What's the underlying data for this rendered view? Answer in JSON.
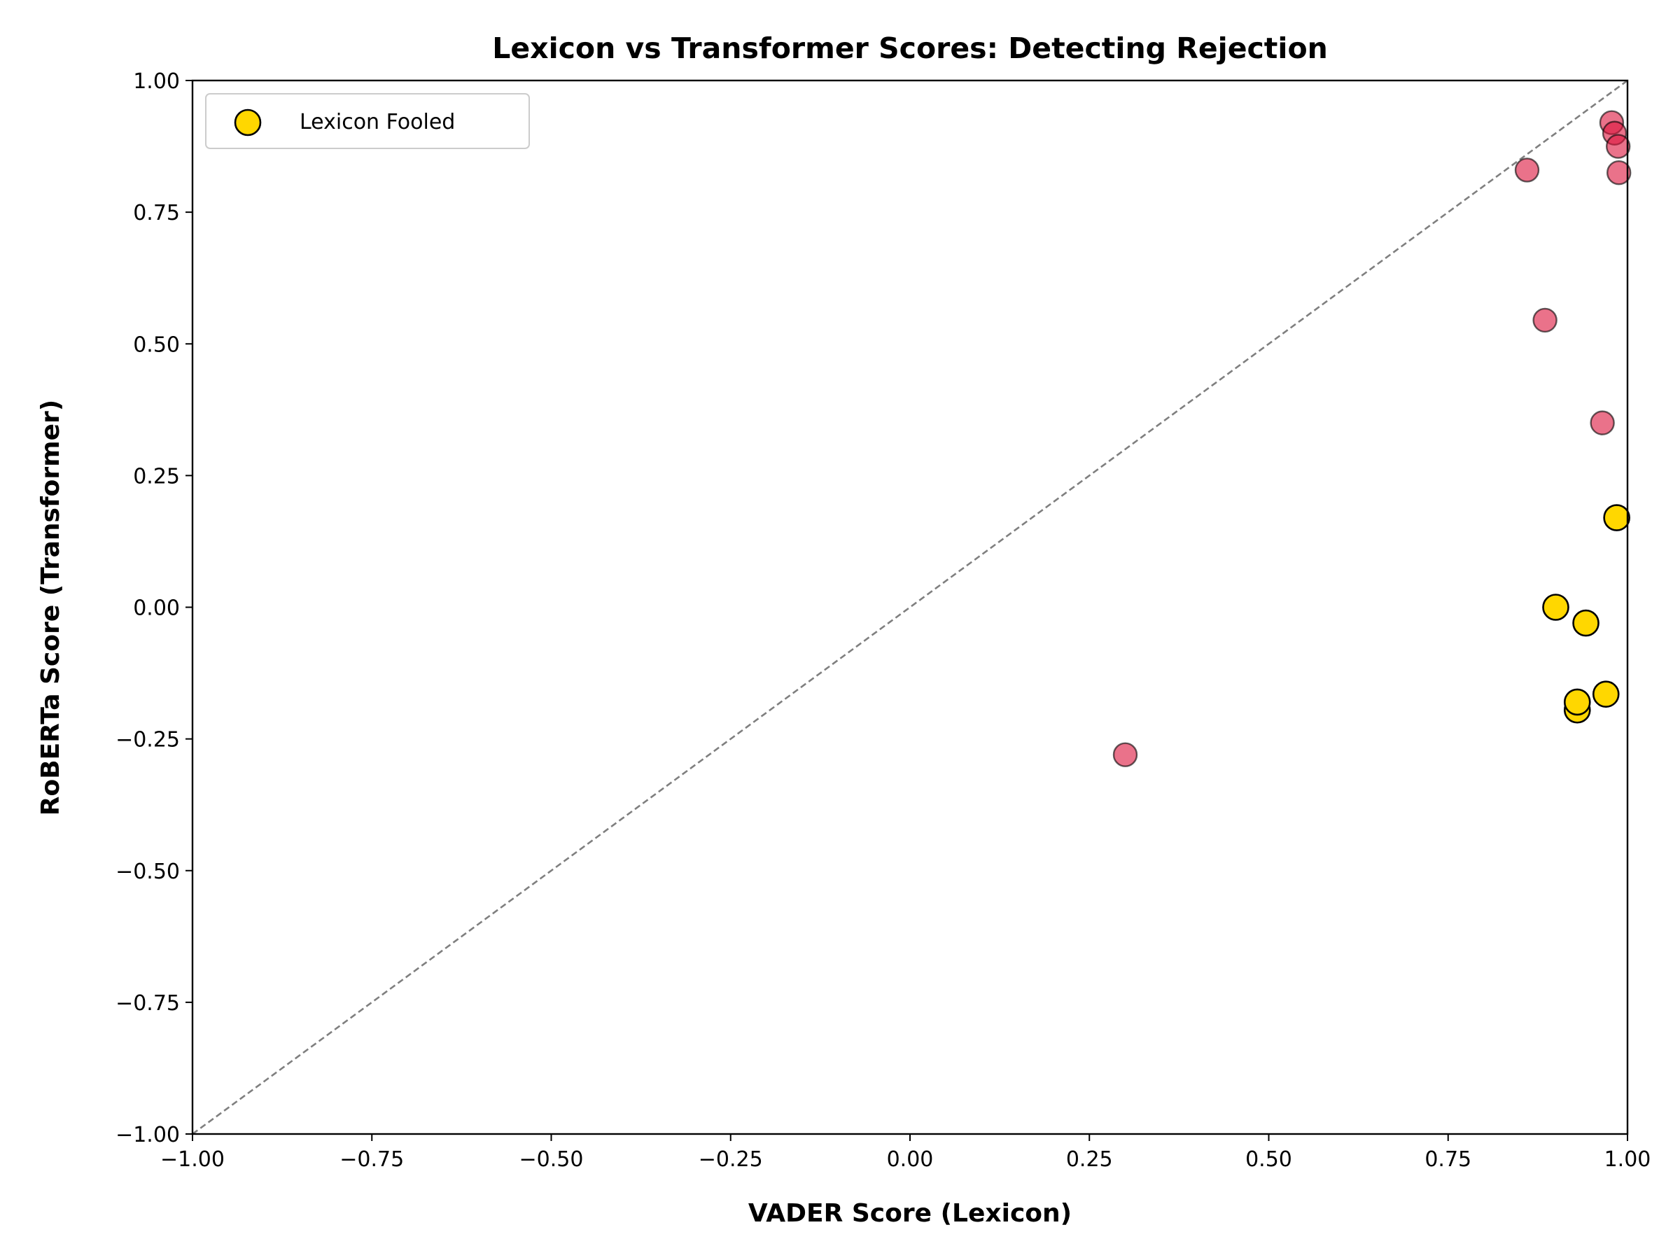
{
  "chart_data": {
    "type": "scatter",
    "title": "Lexicon vs Transformer Scores: Detecting Rejection",
    "xlabel": "VADER Score (Lexicon)",
    "ylabel": "RoBERTa Score (Transformer)",
    "xlim": [
      -1.0,
      1.0
    ],
    "ylim": [
      -1.0,
      1.0
    ],
    "x_ticks": [
      "−1.00",
      "−0.75",
      "−0.50",
      "−0.25",
      "0.00",
      "0.25",
      "0.50",
      "0.75",
      "1.00"
    ],
    "y_ticks": [
      "−1.00",
      "−0.75",
      "−0.50",
      "−0.25",
      "0.00",
      "0.25",
      "0.50",
      "0.75",
      "1.00"
    ],
    "x_tick_values": [
      -1.0,
      -0.75,
      -0.5,
      -0.25,
      0.0,
      0.25,
      0.5,
      0.75,
      1.0
    ],
    "y_tick_values": [
      -1.0,
      -0.75,
      -0.5,
      -0.25,
      0.0,
      0.25,
      0.5,
      0.75,
      1.0
    ],
    "grid": false,
    "reference_line": "y = x (dashed, gray)",
    "legend_position": "top-left",
    "series": [
      {
        "color": "#dc143c",
        "points": [
          {
            "x": 0.86,
            "y": 0.83
          },
          {
            "x": 0.885,
            "y": 0.545
          },
          {
            "x": 0.965,
            "y": 0.35
          },
          {
            "x": 0.978,
            "y": 0.92
          },
          {
            "x": 0.982,
            "y": 0.9
          },
          {
            "x": 0.987,
            "y": 0.875
          },
          {
            "x": 0.988,
            "y": 0.825
          },
          {
            "x": 0.3,
            "y": -0.28
          }
        ]
      },
      {
        "name": "Lexicon Fooled",
        "color": "#ffd700",
        "points": [
          {
            "x": 0.985,
            "y": 0.17
          },
          {
            "x": 0.9,
            "y": 0.0
          },
          {
            "x": 0.942,
            "y": -0.03
          },
          {
            "x": 0.97,
            "y": -0.165
          },
          {
            "x": 0.93,
            "y": -0.195
          },
          {
            "x": 0.93,
            "y": -0.18
          }
        ]
      }
    ]
  }
}
